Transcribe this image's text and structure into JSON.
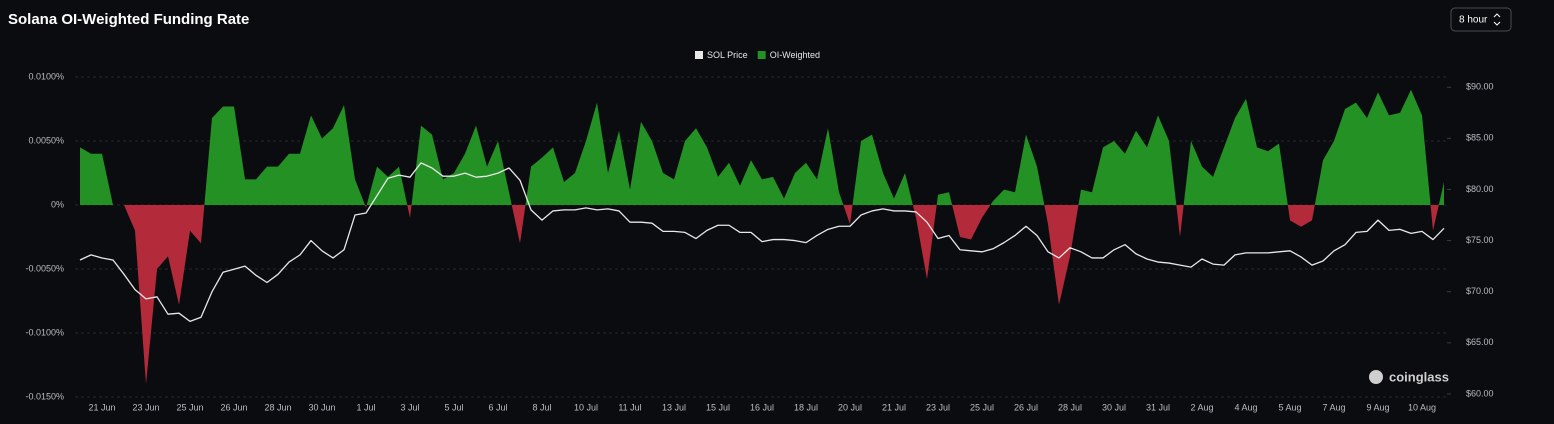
{
  "chart_data": {
    "type": "combo",
    "title": "Solana OI-Weighted Funding Rate",
    "interval_selector": "8 hour",
    "watermark": "coinglass",
    "legend_position": "top",
    "grid": true,
    "categories": [
      null,
      null,
      "21 Jun",
      null,
      null,
      null,
      "23 Jun",
      null,
      null,
      null,
      "25 Jun",
      null,
      null,
      null,
      "26 Jun",
      null,
      null,
      null,
      "28 Jun",
      null,
      null,
      null,
      "30 Jun",
      null,
      null,
      null,
      "1 Jul",
      null,
      null,
      null,
      "3 Jul",
      null,
      null,
      null,
      "5 Jul",
      null,
      null,
      null,
      "6 Jul",
      null,
      null,
      null,
      "8 Jul",
      null,
      null,
      null,
      "10 Jul",
      null,
      null,
      null,
      "11 Jul",
      null,
      null,
      null,
      "13 Jul",
      null,
      null,
      null,
      "15 Jul",
      null,
      null,
      null,
      "16 Jul",
      null,
      null,
      null,
      "18 Jul",
      null,
      null,
      null,
      "20 Jul",
      null,
      null,
      null,
      "21 Jul",
      null,
      null,
      null,
      "23 Jul",
      null,
      null,
      null,
      "25 Jul",
      null,
      null,
      null,
      "26 Jul",
      null,
      null,
      null,
      "28 Jul",
      null,
      null,
      null,
      "30 Jul",
      null,
      null,
      null,
      "31 Jul",
      null,
      null,
      null,
      "2 Aug",
      null,
      null,
      null,
      "4 Aug",
      null,
      null,
      null,
      "5 Aug",
      null,
      null,
      null,
      "7 Aug",
      null,
      null,
      null,
      "9 Aug",
      null,
      null,
      null,
      "10 Aug",
      null,
      null
    ],
    "ylim": [
      -0.015,
      0.01
    ],
    "yticks": [
      {
        "value": 0.01,
        "label": "0.0100%"
      },
      {
        "value": 0.005,
        "label": "0.0050%"
      },
      {
        "value": 0,
        "label": "0%"
      },
      {
        "value": -0.005,
        "label": "-0.0050%"
      },
      {
        "value": -0.01,
        "label": "-0.0100%"
      },
      {
        "value": -0.015,
        "label": "-0.0150%"
      }
    ],
    "y2lim": [
      59.7,
      91
    ],
    "y2ticks": [
      {
        "value": 90,
        "label": "$90.00"
      },
      {
        "value": 85,
        "label": "$85.00"
      },
      {
        "value": 80,
        "label": "$80.00"
      },
      {
        "value": 75,
        "label": "$75.00"
      },
      {
        "value": 70,
        "label": "$70.00"
      },
      {
        "value": 65,
        "label": "$65.00"
      },
      {
        "value": 60,
        "label": "$60.00"
      }
    ],
    "series": [
      {
        "name": "SOL Price",
        "type": "line",
        "axis": "y2",
        "color": "#e8e8e8",
        "values": [
          73.1,
          73.6,
          73.3,
          73.1,
          71.7,
          70.2,
          69.3,
          69.5,
          67.8,
          67.9,
          67.1,
          67.5,
          70.0,
          71.9,
          72.2,
          72.5,
          71.6,
          70.9,
          71.7,
          72.9,
          73.6,
          75.0,
          74.0,
          73.3,
          74.1,
          77.5,
          77.7,
          79.4,
          81.1,
          81.4,
          81.2,
          82.6,
          82.1,
          81.3,
          81.3,
          81.6,
          81.2,
          81.3,
          81.6,
          82.1,
          80.9,
          78.0,
          77.0,
          77.9,
          78.0,
          78.0,
          78.2,
          78.0,
          78.1,
          77.9,
          76.8,
          76.8,
          76.7,
          75.9,
          75.9,
          75.8,
          75.2,
          76.0,
          76.5,
          76.5,
          75.8,
          75.8,
          74.9,
          75.1,
          75.1,
          75.0,
          74.8,
          75.5,
          76.1,
          76.4,
          76.4,
          77.5,
          77.9,
          78.1,
          77.9,
          77.9,
          77.8,
          76.8,
          75.2,
          75.5,
          74.1,
          74.0,
          73.9,
          74.2,
          74.8,
          75.5,
          76.4,
          75.5,
          73.9,
          73.3,
          74.3,
          73.9,
          73.3,
          73.3,
          74.1,
          74.6,
          73.7,
          73.2,
          72.9,
          72.8,
          72.6,
          72.4,
          73.2,
          72.7,
          72.6,
          73.6,
          73.8,
          73.8,
          73.8,
          73.9,
          74.0,
          73.4,
          72.6,
          73.0,
          74.0,
          74.6,
          75.8,
          75.9,
          77.0,
          76.0,
          76.1,
          75.7,
          75.9,
          75.1,
          76.2
        ]
      },
      {
        "name": "OI-Weighted",
        "type": "area",
        "axis": "y",
        "color": "#239123",
        "negative_color": "#b32a3a",
        "values": [
          0.0045,
          0.004,
          0.004,
          0,
          0,
          -0.002,
          -0.014,
          -0.005,
          -0.004,
          -0.0078,
          -0.002,
          -0.003,
          0.0068,
          0.0077,
          0.0077,
          0.002,
          0.002,
          0.003,
          0.003,
          0.004,
          0.004,
          0.007,
          0.0052,
          0.006,
          0.0078,
          0.002,
          -0.0002,
          0.003,
          0.0022,
          0.003,
          -0.001,
          0.0062,
          0.0055,
          0.002,
          0.0025,
          0.004,
          0.0062,
          0.003,
          0.005,
          0.001,
          -0.003,
          0.003,
          0.0037,
          0.0045,
          0.0018,
          0.0025,
          0.005,
          0.008,
          0.0025,
          0.0058,
          0.0012,
          0.0065,
          0.005,
          0.0025,
          0.002,
          0.005,
          0.006,
          0.0045,
          0.0022,
          0.0033,
          0.0015,
          0.0035,
          0.002,
          0.0022,
          0.0005,
          0.0025,
          0.0033,
          0.002,
          0.006,
          0.001,
          -0.0015,
          0.005,
          0.0055,
          0.0025,
          0.0005,
          0.0025,
          -0.001,
          -0.0058,
          0.0008,
          0.001,
          -0.0025,
          -0.0027,
          -0.001,
          0.0003,
          0.0012,
          0.001,
          0.0055,
          0.003,
          -0.0015,
          -0.0078,
          -0.004,
          0.0012,
          0.001,
          0.0045,
          0.005,
          0.004,
          0.0058,
          0.0045,
          0.007,
          0.005,
          -0.0025,
          0.005,
          0.003,
          0.0022,
          0.0045,
          0.0068,
          0.0083,
          0.0045,
          0.0042,
          0.0048,
          -0.0012,
          -0.0017,
          -0.0012,
          0.0035,
          0.005,
          0.0075,
          0.008,
          0.0068,
          0.0088,
          0.007,
          0.0072,
          0.009,
          0.007,
          -0.002,
          0.0018
        ]
      }
    ]
  }
}
